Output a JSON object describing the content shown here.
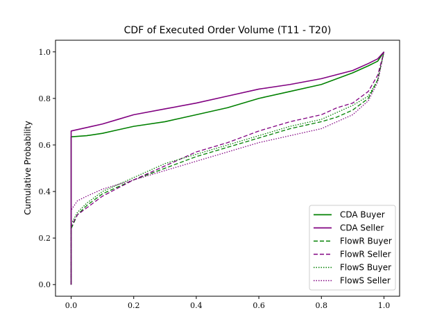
{
  "chart_data": {
    "type": "line",
    "title": "CDF of Executed Order Volume (T11 - T20)",
    "xlabel": "",
    "ylabel": "Cumulative Probability",
    "xlim": [
      -0.05,
      1.05
    ],
    "ylim": [
      -0.05,
      1.05
    ],
    "x_ticks": [
      "0.0",
      "0.2",
      "0.4",
      "0.6",
      "0.8",
      "1.0"
    ],
    "y_ticks": [
      "0.0",
      "0.2",
      "0.4",
      "0.6",
      "0.8",
      "1.0"
    ],
    "grid": false,
    "legend_position": "lower-right",
    "series": [
      {
        "name": "CDA Buyer",
        "color": "#008000",
        "style": "solid",
        "x": [
          0.0,
          0.0,
          0.0,
          0.05,
          0.1,
          0.15,
          0.2,
          0.3,
          0.4,
          0.5,
          0.6,
          0.7,
          0.8,
          0.9,
          0.95,
          0.98,
          1.0
        ],
        "y": [
          0.0,
          0.63,
          0.635,
          0.64,
          0.65,
          0.665,
          0.68,
          0.7,
          0.73,
          0.76,
          0.8,
          0.83,
          0.86,
          0.91,
          0.94,
          0.96,
          1.0
        ]
      },
      {
        "name": "CDA Seller",
        "color": "#800080",
        "style": "solid",
        "x": [
          0.0,
          0.0,
          0.0,
          0.05,
          0.1,
          0.15,
          0.2,
          0.3,
          0.4,
          0.5,
          0.6,
          0.7,
          0.8,
          0.9,
          0.95,
          0.98,
          1.0
        ],
        "y": [
          0.0,
          0.655,
          0.66,
          0.675,
          0.69,
          0.71,
          0.73,
          0.755,
          0.78,
          0.81,
          0.84,
          0.86,
          0.885,
          0.92,
          0.95,
          0.97,
          1.0
        ]
      },
      {
        "name": "FlowR Buyer",
        "color": "#008000",
        "style": "dashed",
        "x": [
          0.0,
          0.0,
          0.02,
          0.05,
          0.1,
          0.2,
          0.3,
          0.4,
          0.5,
          0.6,
          0.7,
          0.8,
          0.85,
          0.9,
          0.95,
          0.98,
          1.0
        ],
        "y": [
          0.0,
          0.24,
          0.3,
          0.34,
          0.39,
          0.45,
          0.5,
          0.55,
          0.59,
          0.63,
          0.67,
          0.7,
          0.72,
          0.75,
          0.8,
          0.88,
          1.0
        ]
      },
      {
        "name": "FlowR Seller",
        "color": "#800080",
        "style": "dashed",
        "x": [
          0.0,
          0.0,
          0.02,
          0.05,
          0.1,
          0.2,
          0.3,
          0.4,
          0.5,
          0.6,
          0.7,
          0.8,
          0.85,
          0.9,
          0.95,
          0.98,
          1.0
        ],
        "y": [
          0.0,
          0.25,
          0.3,
          0.33,
          0.38,
          0.45,
          0.51,
          0.57,
          0.61,
          0.66,
          0.7,
          0.73,
          0.76,
          0.78,
          0.83,
          0.9,
          1.0
        ]
      },
      {
        "name": "FlowS Buyer",
        "color": "#008000",
        "style": "dotted",
        "x": [
          0.0,
          0.0,
          0.02,
          0.05,
          0.1,
          0.2,
          0.3,
          0.4,
          0.5,
          0.6,
          0.7,
          0.8,
          0.85,
          0.9,
          0.95,
          0.98,
          1.0
        ],
        "y": [
          0.0,
          0.26,
          0.31,
          0.35,
          0.4,
          0.46,
          0.52,
          0.56,
          0.6,
          0.64,
          0.68,
          0.71,
          0.74,
          0.77,
          0.81,
          0.88,
          1.0
        ]
      },
      {
        "name": "FlowS Seller",
        "color": "#800080",
        "style": "dotted",
        "x": [
          0.0,
          0.0,
          0.02,
          0.05,
          0.1,
          0.2,
          0.3,
          0.4,
          0.5,
          0.6,
          0.7,
          0.8,
          0.85,
          0.9,
          0.95,
          0.98,
          1.0
        ],
        "y": [
          0.0,
          0.32,
          0.36,
          0.38,
          0.41,
          0.45,
          0.49,
          0.53,
          0.57,
          0.61,
          0.64,
          0.67,
          0.7,
          0.73,
          0.79,
          0.87,
          1.0
        ]
      }
    ]
  }
}
